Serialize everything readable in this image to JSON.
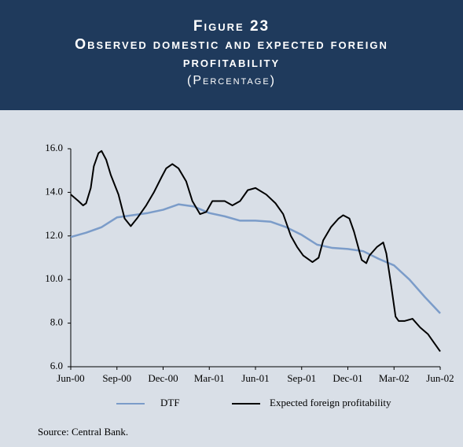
{
  "chart_data": {
    "type": "line",
    "figure": "Figure 23",
    "title": "Observed domestic and expected foreign profitability",
    "subtitle": "(Percentage)",
    "source": "Source: Central Bank.",
    "xlim": [
      0,
      24
    ],
    "xticks": [
      {
        "value": 0,
        "label": "Jun-00"
      },
      {
        "value": 3,
        "label": "Sep-00"
      },
      {
        "value": 6,
        "label": "Dec-00"
      },
      {
        "value": 9,
        "label": "Mar-01"
      },
      {
        "value": 12,
        "label": "Jun-01"
      },
      {
        "value": 15,
        "label": "Sep-01"
      },
      {
        "value": 18,
        "label": "Dec-01"
      },
      {
        "value": 21,
        "label": "Mar-02"
      },
      {
        "value": 24,
        "label": "Jun-02"
      }
    ],
    "ylim": [
      6,
      16
    ],
    "yticks": [
      {
        "value": 6,
        "label": "6.0"
      },
      {
        "value": 8,
        "label": "8.0"
      },
      {
        "value": 10,
        "label": "10.0"
      },
      {
        "value": 12,
        "label": "12.0"
      },
      {
        "value": 14,
        "label": "14.0"
      },
      {
        "value": 16,
        "label": "16.0"
      }
    ],
    "series": [
      {
        "name": "DTF",
        "color": "#7b9cc9",
        "x": [
          0,
          1,
          2,
          3,
          4,
          5,
          6,
          7,
          8,
          9,
          10,
          11,
          12,
          13,
          14,
          15,
          16,
          17,
          18,
          19,
          20,
          21,
          22,
          23,
          24
        ],
        "values": [
          11.95,
          12.15,
          12.4,
          12.85,
          12.95,
          13.05,
          13.2,
          13.45,
          13.35,
          13.05,
          12.9,
          12.7,
          12.7,
          12.65,
          12.4,
          12.05,
          11.6,
          11.45,
          11.4,
          11.3,
          10.95,
          10.65,
          10.0,
          9.2,
          8.45
        ]
      },
      {
        "name": "Expected foreign profitability",
        "color": "#000000",
        "x": [
          0,
          0.5,
          0.8,
          1.0,
          1.3,
          1.5,
          1.8,
          2.0,
          2.3,
          2.6,
          3.1,
          3.5,
          3.9,
          4.3,
          4.9,
          5.4,
          5.9,
          6.2,
          6.6,
          7.0,
          7.5,
          7.9,
          8.4,
          8.8,
          9.2,
          10.0,
          10.5,
          11.0,
          11.5,
          12.0,
          12.7,
          13.3,
          13.8,
          14.3,
          14.7,
          15.1,
          15.7,
          16.1,
          16.4,
          16.9,
          17.4,
          17.7,
          18.1,
          18.4,
          18.9,
          19.2,
          19.4,
          19.9,
          20.3,
          20.5,
          20.8,
          21.1,
          21.3,
          21.7,
          22.2,
          22.7,
          23.2,
          23.6,
          24.0
        ],
        "values": [
          13.9,
          13.6,
          13.4,
          13.5,
          14.2,
          15.2,
          15.8,
          15.9,
          15.5,
          14.8,
          13.9,
          12.8,
          12.45,
          12.8,
          13.4,
          14.0,
          14.7,
          15.1,
          15.3,
          15.1,
          14.5,
          13.6,
          13.0,
          13.1,
          13.6,
          13.6,
          13.4,
          13.6,
          14.1,
          14.2,
          13.9,
          13.5,
          13.0,
          12.0,
          11.5,
          11.1,
          10.8,
          11.0,
          11.8,
          12.4,
          12.8,
          12.95,
          12.8,
          12.2,
          10.9,
          10.75,
          11.1,
          11.5,
          11.7,
          11.2,
          9.8,
          8.3,
          8.1,
          8.1,
          8.2,
          7.8,
          7.5,
          7.1,
          6.7
        ]
      }
    ]
  }
}
